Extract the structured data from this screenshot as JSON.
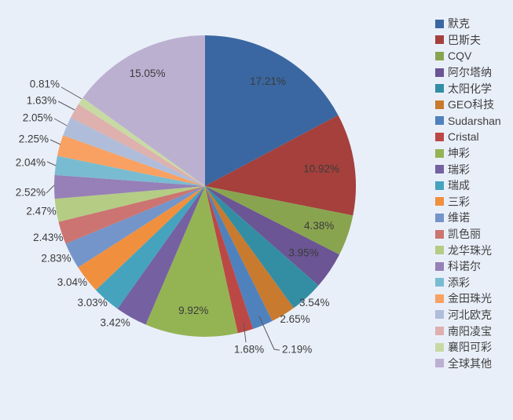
{
  "chart_data": {
    "type": "pie",
    "title": "",
    "start_angle_deg": 0,
    "direction": "clockwise",
    "legend_position": "right",
    "background_color": "#E9EFF9",
    "label_color": "#3B3B3B",
    "leader_line_color": "#5A5A5A",
    "slices": [
      {
        "label": "默克",
        "value": 17.21,
        "percent_label": "17.21%",
        "color": "#3A67A1"
      },
      {
        "label": "巴斯夫",
        "value": 10.92,
        "percent_label": "10.92%",
        "color": "#A5403C"
      },
      {
        "label": "CQV",
        "value": 4.38,
        "percent_label": "4.38%",
        "color": "#89A44F"
      },
      {
        "label": "阿尔塔纳",
        "value": 3.95,
        "percent_label": "3.95%",
        "color": "#6B5594"
      },
      {
        "label": "太阳化学",
        "value": 3.54,
        "percent_label": "3.54%",
        "color": "#338EA4"
      },
      {
        "label": "GEO科技",
        "value": 2.65,
        "percent_label": "2.65%",
        "color": "#C87A2E"
      },
      {
        "label": "Sudarshan",
        "value": 2.19,
        "percent_label": "2.19%",
        "color": "#4F81BD"
      },
      {
        "label": "Cristal",
        "value": 1.68,
        "percent_label": "1.68%",
        "color": "#BC4845"
      },
      {
        "label": "坤彩",
        "value": 9.92,
        "percent_label": "9.92%",
        "color": "#94B454"
      },
      {
        "label": "瑞彩",
        "value": 3.42,
        "percent_label": "3.42%",
        "color": "#7560A1"
      },
      {
        "label": "瑞成",
        "value": 3.03,
        "percent_label": "3.03%",
        "color": "#45A3BD"
      },
      {
        "label": "三彩",
        "value": 3.04,
        "percent_label": "3.04%",
        "color": "#F0903F"
      },
      {
        "label": "维诺",
        "value": 2.83,
        "percent_label": "2.83%",
        "color": "#7495C9"
      },
      {
        "label": "凯色丽",
        "value": 2.43,
        "percent_label": "2.43%",
        "color": "#CC7471"
      },
      {
        "label": "龙华珠光",
        "value": 2.47,
        "percent_label": "2.47%",
        "color": "#B5CC84"
      },
      {
        "label": "科诺尔",
        "value": 2.52,
        "percent_label": "2.52%",
        "color": "#9680B7"
      },
      {
        "label": "添彩",
        "value": 2.04,
        "percent_label": "2.04%",
        "color": "#79BCD1"
      },
      {
        "label": "金田珠光",
        "value": 2.25,
        "percent_label": "2.25%",
        "color": "#F9A162"
      },
      {
        "label": "河北欧克",
        "value": 2.05,
        "percent_label": "2.05%",
        "color": "#AFBDDB"
      },
      {
        "label": "南阳凌宝",
        "value": 1.63,
        "percent_label": "1.63%",
        "color": "#DEB0AE"
      },
      {
        "label": "襄阳可彩",
        "value": 0.81,
        "percent_label": "0.81%",
        "color": "#C8DAA4"
      },
      {
        "label": "全球其他",
        "value": 15.05,
        "percent_label": "15.05%",
        "color": "#BCB0D0"
      }
    ]
  }
}
